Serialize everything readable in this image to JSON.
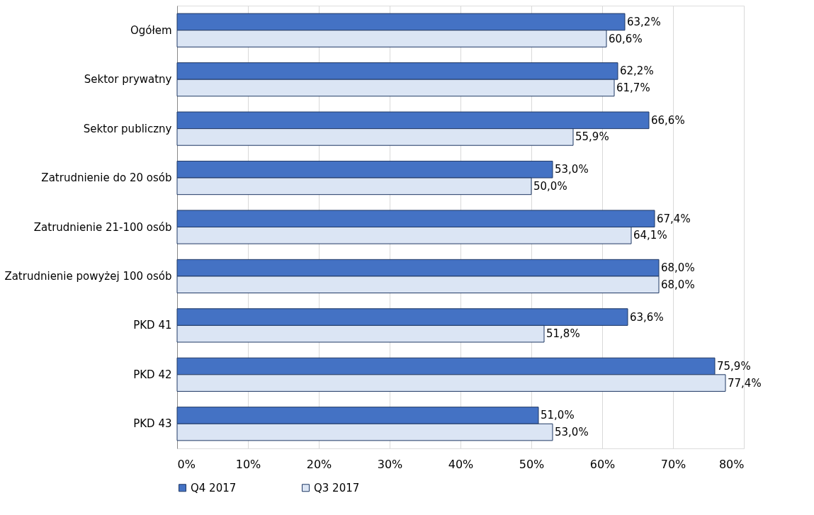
{
  "chart_data": {
    "type": "bar",
    "orientation": "horizontal",
    "categories": [
      "Ogółem",
      "Sektor prywatny",
      "Sektor publiczny",
      "Zatrudnienie do 20 osób",
      "Zatrudnienie 21-100 osób",
      "Zatrudnienie powyżej 100 osób",
      "PKD 41",
      "PKD 42",
      "PKD 43"
    ],
    "series": [
      {
        "name": "Q4 2017",
        "color": "#4472c4",
        "values": [
          63.2,
          62.2,
          66.6,
          53.0,
          67.4,
          68.0,
          63.6,
          75.9,
          51.0
        ],
        "value_labels": [
          "63,2%",
          "62,2%",
          "66,6%",
          "53,0%",
          "67,4%",
          "68,0%",
          "63,6%",
          "75,9%",
          "51,0%"
        ]
      },
      {
        "name": "Q3 2017",
        "color": "#dbe5f4",
        "values": [
          60.6,
          61.7,
          55.9,
          50.0,
          64.1,
          68.0,
          51.8,
          77.4,
          53.0
        ],
        "value_labels": [
          "60,6%",
          "61,7%",
          "55,9%",
          "50,0%",
          "64,1%",
          "68,0%",
          "51,8%",
          "77,4%",
          "53,0%"
        ]
      }
    ],
    "xlim": [
      0,
      80
    ],
    "xticks": [
      {
        "value": 0,
        "label": "0%"
      },
      {
        "value": 10,
        "label": "10%"
      },
      {
        "value": 20,
        "label": "20%"
      },
      {
        "value": 30,
        "label": "30%"
      },
      {
        "value": 40,
        "label": "40%"
      },
      {
        "value": 50,
        "label": "50%"
      },
      {
        "value": 60,
        "label": "60%"
      },
      {
        "value": 70,
        "label": "70%"
      },
      {
        "value": 80,
        "label": "80%"
      }
    ],
    "grid": "x",
    "legend": "bottom"
  }
}
